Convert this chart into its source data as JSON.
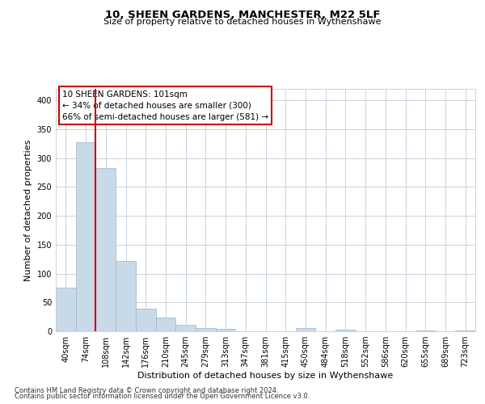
{
  "title1": "10, SHEEN GARDENS, MANCHESTER, M22 5LF",
  "title2": "Size of property relative to detached houses in Wythenshawe",
  "xlabel": "Distribution of detached houses by size in Wythenshawe",
  "ylabel": "Number of detached properties",
  "footer1": "Contains HM Land Registry data © Crown copyright and database right 2024.",
  "footer2": "Contains public sector information licensed under the Open Government Licence v3.0.",
  "annotation_title": "10 SHEEN GARDENS: 101sqm",
  "annotation_line1": "← 34% of detached houses are smaller (300)",
  "annotation_line2": "66% of semi-detached houses are larger (581) →",
  "bar_color": "#c8d9e8",
  "bar_edge_color": "#9ab4c8",
  "red_line_color": "#cc0000",
  "categories": [
    "40sqm",
    "74sqm",
    "108sqm",
    "142sqm",
    "176sqm",
    "210sqm",
    "245sqm",
    "279sqm",
    "313sqm",
    "347sqm",
    "381sqm",
    "415sqm",
    "450sqm",
    "484sqm",
    "518sqm",
    "552sqm",
    "586sqm",
    "620sqm",
    "655sqm",
    "689sqm",
    "723sqm"
  ],
  "values": [
    75,
    328,
    283,
    122,
    39,
    24,
    11,
    5,
    4,
    0,
    0,
    0,
    5,
    0,
    3,
    0,
    0,
    0,
    2,
    0,
    2
  ],
  "red_line_x": 2.0,
  "ylim": [
    0,
    420
  ],
  "yticks": [
    0,
    50,
    100,
    150,
    200,
    250,
    300,
    350,
    400
  ],
  "title1_fontsize": 9.5,
  "title2_fontsize": 8.0,
  "xlabel_fontsize": 8.0,
  "ylabel_fontsize": 8.0,
  "tick_fontsize": 7.0,
  "annotation_fontsize": 7.5,
  "footer_fontsize": 6.0
}
